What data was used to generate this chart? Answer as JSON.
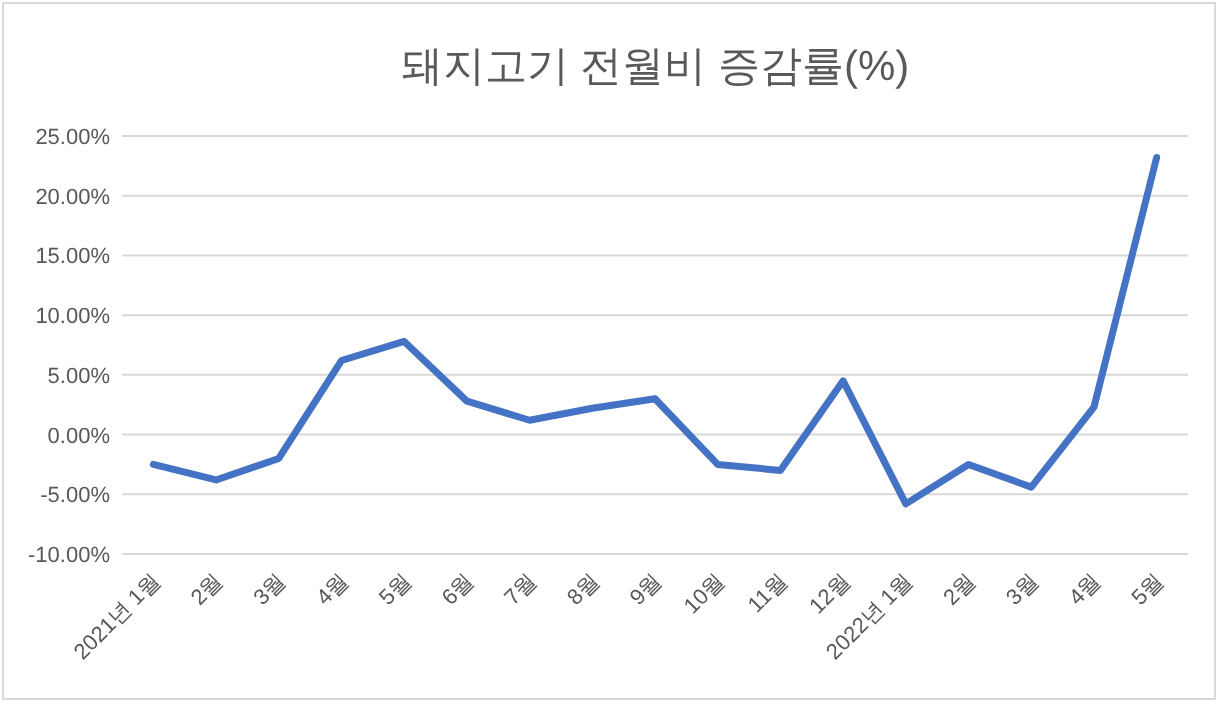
{
  "chart_data": {
    "type": "line",
    "title": "돼지고기 전월비 증감률(%)",
    "categories": [
      "2021년 1월",
      "2월",
      "3월",
      "4월",
      "5월",
      "6월",
      "7월",
      "8월",
      "9월",
      "10월",
      "11월",
      "12월",
      "2022년 1월",
      "2월",
      "3월",
      "4월",
      "5월"
    ],
    "series": [
      {
        "color": "#4472c4",
        "values": [
          -2.5,
          -3.8,
          -2.0,
          6.2,
          7.8,
          2.8,
          1.2,
          2.2,
          3.0,
          -2.5,
          -3.0,
          4.5,
          -5.8,
          -2.5,
          -4.4,
          2.3,
          23.2
        ]
      }
    ],
    "ylim": [
      -10,
      25
    ],
    "yticks": [
      {
        "value": -10,
        "label": "-10.00%"
      },
      {
        "value": -5,
        "label": "-5.00%"
      },
      {
        "value": 0,
        "label": "0.00%"
      },
      {
        "value": 5,
        "label": "5.00%"
      },
      {
        "value": 10,
        "label": "10.00%"
      },
      {
        "value": 15,
        "label": "15.00%"
      },
      {
        "value": 20,
        "label": "20.00%"
      },
      {
        "value": 25,
        "label": "25.00%"
      }
    ],
    "grid": "y",
    "marker": "none",
    "line_style": "solid"
  }
}
